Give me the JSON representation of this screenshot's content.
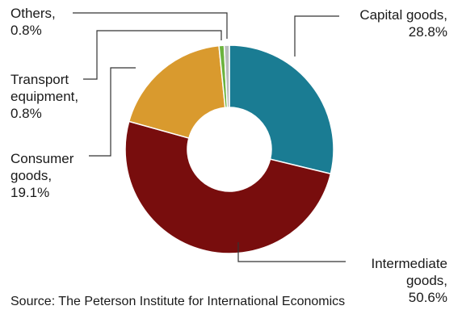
{
  "chart_data": {
    "type": "pie",
    "donut": true,
    "slices": [
      {
        "label": "Capital goods",
        "value": 28.8,
        "display": "28.8%",
        "color": "#1a7c93"
      },
      {
        "label": "Intermediate goods",
        "value": 50.6,
        "display": "50.6%",
        "color": "#780d0d"
      },
      {
        "label": "Consumer goods",
        "value": 19.1,
        "display": "19.1%",
        "color": "#d99a2e"
      },
      {
        "label": "Transport equipment",
        "value": 0.8,
        "display": "0.8%",
        "color": "#6cb33f"
      },
      {
        "label": "Others",
        "value": 0.8,
        "display": "0.8%",
        "color": "#b8bcbd"
      }
    ],
    "legend": "none"
  },
  "labels": {
    "others": [
      "Others,",
      "0.8%"
    ],
    "transport": [
      "Transport",
      "equipment,",
      "0.8%"
    ],
    "consumer": [
      "Consumer",
      "goods,",
      "19.1%"
    ],
    "capital": [
      "Capital goods,",
      "28.8%"
    ],
    "intermediate": [
      "Intermediate",
      "goods,",
      "50.6%"
    ]
  },
  "source": "Source: The Peterson Institute for International Economics"
}
